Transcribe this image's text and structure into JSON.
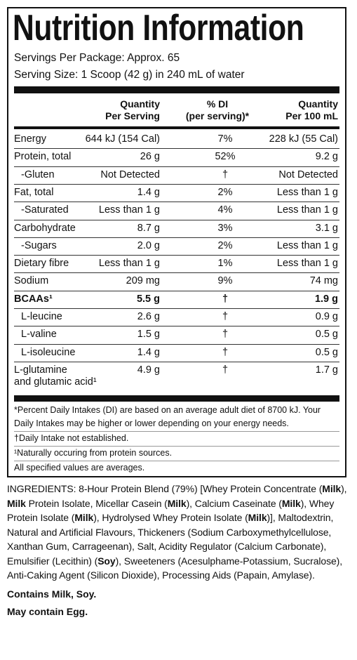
{
  "header": {
    "title": "Nutrition Information",
    "servings": "Servings Per Package: Approx. 65",
    "serving_size": "Serving Size: 1 Scoop (42 g) in 240 mL of water"
  },
  "table": {
    "columns": [
      "Quantity\nPer Serving",
      "% DI\n(per serving)*",
      "Quantity\nPer 100 mL"
    ],
    "rows": [
      {
        "name": "Energy",
        "serving": "644 kJ (154 Cal)",
        "di": "7%",
        "per100": "228 kJ (55 Cal)"
      },
      {
        "name": "Protein, total",
        "serving": "26 g",
        "di": "52%",
        "per100": "9.2 g"
      },
      {
        "name": "-Gluten",
        "serving": "Not Detected",
        "di": "†",
        "per100": "Not Detected",
        "indent": true
      },
      {
        "name": "Fat, total",
        "serving": "1.4 g",
        "di": "2%",
        "per100": "Less than 1 g"
      },
      {
        "name": "-Saturated",
        "serving": "Less than 1 g",
        "di": "4%",
        "per100": "Less than 1 g",
        "indent": true
      },
      {
        "name": "Carbohydrate",
        "serving": "8.7 g",
        "di": "3%",
        "per100": "3.1 g"
      },
      {
        "name": "-Sugars",
        "serving": "2.0 g",
        "di": "2%",
        "per100": "Less than 1 g",
        "indent": true
      },
      {
        "name": "Dietary fibre",
        "serving": "Less than 1 g",
        "di": "1%",
        "per100": "Less than 1 g"
      },
      {
        "name": "Sodium",
        "serving": "209 mg",
        "di": "9%",
        "per100": "74 mg"
      },
      {
        "name": "BCAAs¹",
        "serving": "5.5 g",
        "di": "†",
        "per100": "1.9 g",
        "bold": true
      },
      {
        "name": "L-leucine",
        "serving": "2.6 g",
        "di": "†",
        "per100": "0.9 g",
        "indent": true
      },
      {
        "name": "L-valine",
        "serving": "1.5 g",
        "di": "†",
        "per100": "0.5 g",
        "indent": true
      },
      {
        "name": "L-isoleucine",
        "serving": "1.4 g",
        "di": "†",
        "per100": "0.5 g",
        "indent": true
      },
      {
        "name": "L-glutamine\nand glutamic acid¹",
        "serving": "4.9 g",
        "di": "†",
        "per100": "1.7 g"
      }
    ]
  },
  "footnotes": [
    "*Percent Daily Intakes (DI) are based on an average adult diet of 8700 kJ. Your Daily Intakes may be higher or lower depending on your energy needs.",
    "†Daily Intake not established.",
    "¹Naturally occuring from protein sources.",
    "All specified values are averages."
  ],
  "ingredients": [
    {
      "text": "INGREDIENTS: 8-Hour Protein Blend (79%) [Whey Protein Concentrate ("
    },
    {
      "text": "Milk",
      "bold": true
    },
    {
      "text": "), "
    },
    {
      "text": "Milk",
      "bold": true
    },
    {
      "text": " Protein Isolate, Micellar Casein ("
    },
    {
      "text": "Milk",
      "bold": true
    },
    {
      "text": "), Calcium Caseinate ("
    },
    {
      "text": "Milk",
      "bold": true
    },
    {
      "text": "), Whey Protein Isolate ("
    },
    {
      "text": "Milk",
      "bold": true
    },
    {
      "text": "), Hydrolysed Whey Protein Isolate ("
    },
    {
      "text": "Milk",
      "bold": true
    },
    {
      "text": ")], Maltodextrin, Natural and Artificial Flavours, Thickeners (Sodium Carboxymethylcellulose, Xanthan Gum, Carrageenan), Salt, Acidity Regulator (Calcium Carbonate), Emulsifier (Lecithin) ("
    },
    {
      "text": "Soy",
      "bold": true
    },
    {
      "text": "), Sweeteners (Acesulphame-Potassium, Sucralose), Anti-Caking Agent (Silicon Dioxide), Processing Aids (Papain, Amylase)."
    }
  ],
  "allergens": [
    "Contains Milk, Soy.",
    "May contain Egg."
  ]
}
